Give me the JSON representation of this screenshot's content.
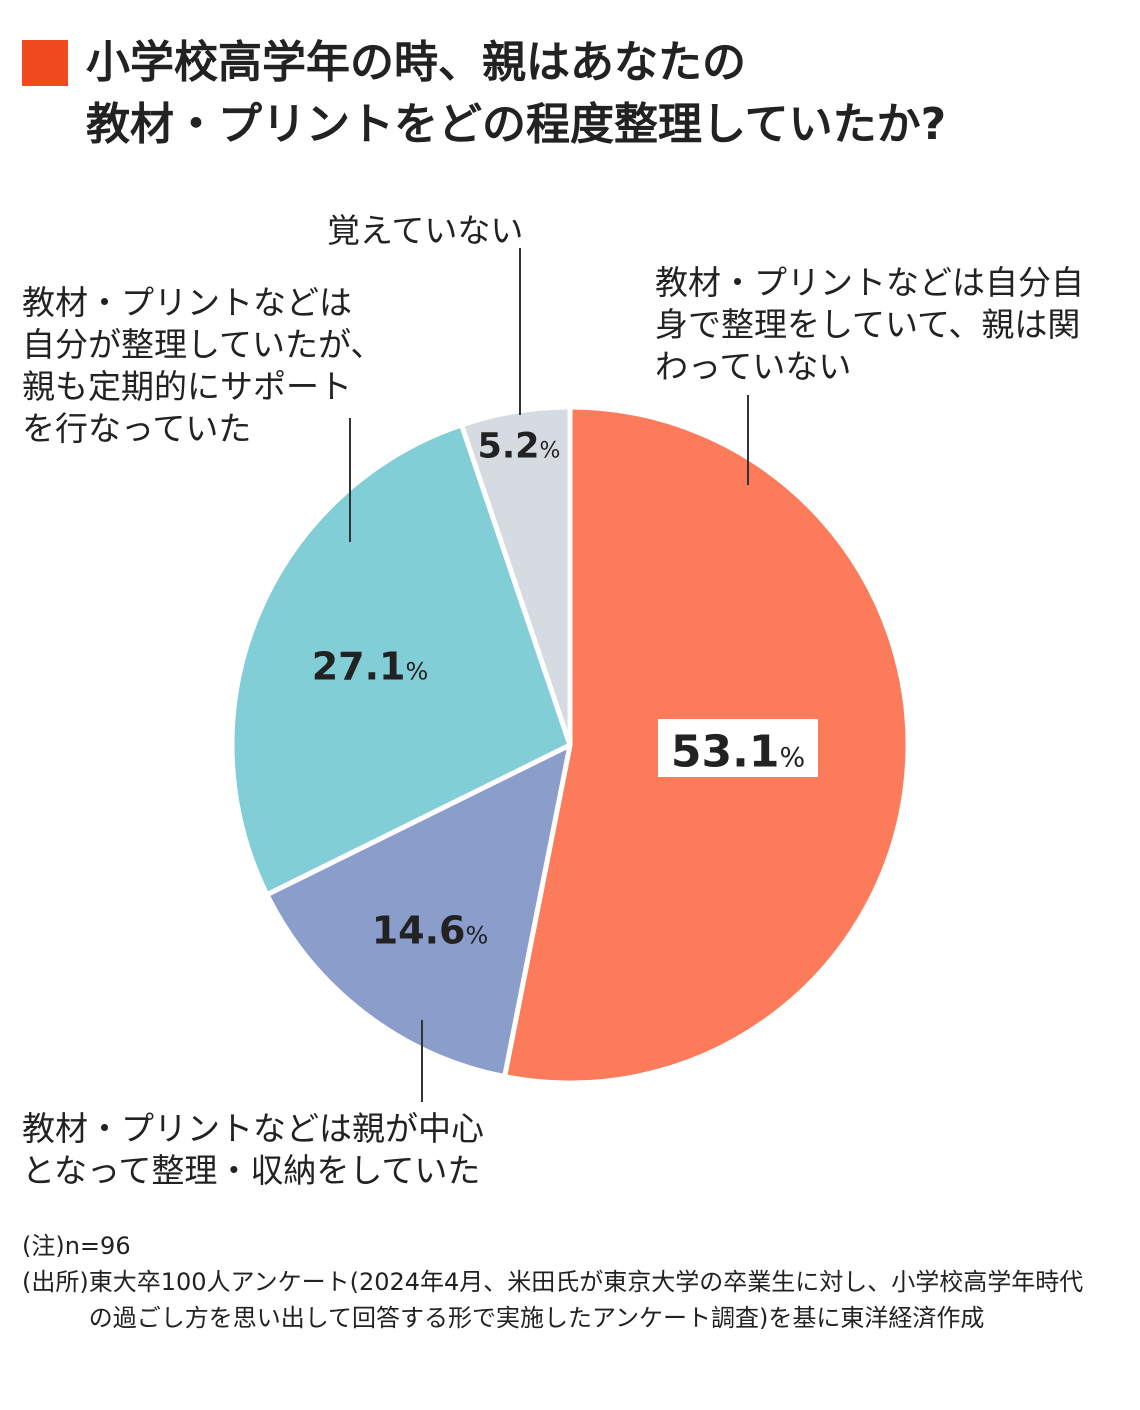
{
  "title": {
    "line1": "小学校高学年の時、親はあなたの",
    "line2": "教材・プリントをどの程度整理していたか?"
  },
  "chart_data": {
    "type": "pie",
    "title": "小学校高学年の時、親はあなたの教材・プリントをどの程度整理していたか?",
    "slices": [
      {
        "label": "教材・プリントなどは自分自身で整理をしていて、親は関わっていない",
        "value": 53.1,
        "display": "53.1",
        "color": "#fb7b5b"
      },
      {
        "label": "教材・プリントなどは親が中心となって整理・収納をしていた",
        "value": 14.6,
        "display": "14.6",
        "color": "#8b9dcb"
      },
      {
        "label": "教材・プリントなどは自分が整理していたが、親も定期的にサポートを行なっていた",
        "value": 27.1,
        "display": "27.1",
        "color": "#82ced6"
      },
      {
        "label": "覚えていない",
        "value": 5.2,
        "display": "5.2",
        "color": "#d6dbe2"
      }
    ],
    "unit": "%"
  },
  "labels": {
    "self": "教材・プリントなどは自分自\n身で整理をしていて、親は関\nわっていない",
    "parent": "教材・プリントなどは親が中心\nとなって整理・収納をしていた",
    "support": "教材・プリントなどは\n自分が整理していたが、\n親も定期的にサポート\nを行なっていた",
    "unknown": "覚えていない"
  },
  "notes": {
    "note": "(注)n=96",
    "source_tag": "(出所)",
    "source_text": "東大卒100人アンケート(2024年4月、米田氏が東京大学の卒業生に対し、小学校高学年時代の過ごし方を思い出して回答する形で実施したアンケート調査)を基に東洋経済作成"
  }
}
